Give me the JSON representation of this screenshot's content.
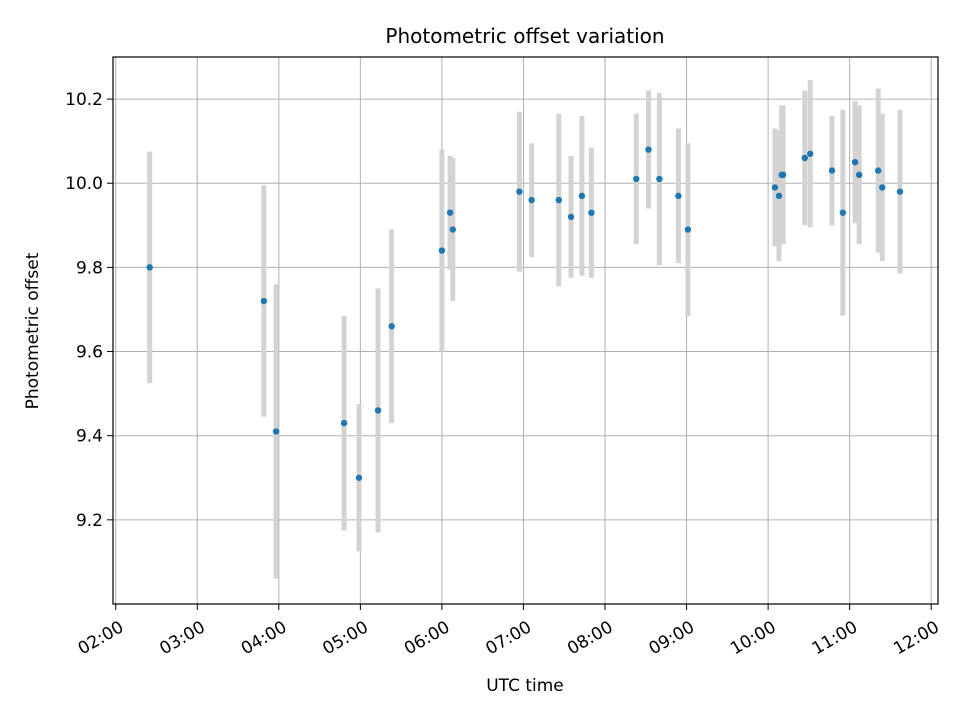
{
  "chart_data": {
    "type": "scatter",
    "title": "Photometric offset variation",
    "xlabel": "UTC time",
    "ylabel": "Photometric offset",
    "x_ticks": [
      "02:00",
      "03:00",
      "04:00",
      "05:00",
      "06:00",
      "07:00",
      "08:00",
      "09:00",
      "10:00",
      "11:00",
      "12:00"
    ],
    "y_ticks": [
      "9.2",
      "9.4",
      "9.6",
      "9.8",
      "10.0",
      "10.2"
    ],
    "xlim": [
      "01:58",
      "12:05"
    ],
    "ylim": [
      9.0,
      10.3
    ],
    "grid": true,
    "colors": {
      "marker": "#1f77b4",
      "errorbar": "#d3d3d3",
      "grid": "#b0b0b0"
    },
    "points": [
      {
        "x": "02:25",
        "y": 9.8,
        "err": 0.275
      },
      {
        "x": "03:49",
        "y": 9.72,
        "err": 0.275
      },
      {
        "x": "03:58",
        "y": 9.41,
        "err": 0.35
      },
      {
        "x": "04:48",
        "y": 9.43,
        "err": 0.255
      },
      {
        "x": "04:59",
        "y": 9.3,
        "err": 0.175
      },
      {
        "x": "05:13",
        "y": 9.46,
        "err": 0.29
      },
      {
        "x": "05:23",
        "y": 9.66,
        "err": 0.23
      },
      {
        "x": "06:00",
        "y": 9.84,
        "err": 0.24
      },
      {
        "x": "06:06",
        "y": 9.93,
        "err": 0.135
      },
      {
        "x": "06:08",
        "y": 9.89,
        "err": 0.17
      },
      {
        "x": "06:57",
        "y": 9.98,
        "err": 0.19
      },
      {
        "x": "07:06",
        "y": 9.96,
        "err": 0.135
      },
      {
        "x": "07:26",
        "y": 9.96,
        "err": 0.205
      },
      {
        "x": "07:35",
        "y": 9.92,
        "err": 0.145
      },
      {
        "x": "07:43",
        "y": 9.97,
        "err": 0.19
      },
      {
        "x": "07:50",
        "y": 9.93,
        "err": 0.155
      },
      {
        "x": "08:23",
        "y": 10.01,
        "err": 0.155
      },
      {
        "x": "08:32",
        "y": 10.08,
        "err": 0.14
      },
      {
        "x": "08:40",
        "y": 10.01,
        "err": 0.205
      },
      {
        "x": "08:54",
        "y": 9.97,
        "err": 0.16
      },
      {
        "x": "09:01",
        "y": 9.89,
        "err": 0.205
      },
      {
        "x": "10:05",
        "y": 9.99,
        "err": 0.14
      },
      {
        "x": "10:08",
        "y": 9.97,
        "err": 0.155
      },
      {
        "x": "10:10",
        "y": 10.02,
        "err": 0.165
      },
      {
        "x": "10:11",
        "y": 10.02,
        "err": 0.165
      },
      {
        "x": "10:27",
        "y": 10.06,
        "err": 0.16
      },
      {
        "x": "10:31",
        "y": 10.07,
        "err": 0.175
      },
      {
        "x": "10:47",
        "y": 10.03,
        "err": 0.13
      },
      {
        "x": "10:55",
        "y": 9.93,
        "err": 0.245
      },
      {
        "x": "11:04",
        "y": 10.05,
        "err": 0.145
      },
      {
        "x": "11:07",
        "y": 10.02,
        "err": 0.165
      },
      {
        "x": "11:21",
        "y": 10.03,
        "err": 0.195
      },
      {
        "x": "11:24",
        "y": 9.99,
        "err": 0.175
      },
      {
        "x": "11:37",
        "y": 9.98,
        "err": 0.195
      }
    ]
  }
}
